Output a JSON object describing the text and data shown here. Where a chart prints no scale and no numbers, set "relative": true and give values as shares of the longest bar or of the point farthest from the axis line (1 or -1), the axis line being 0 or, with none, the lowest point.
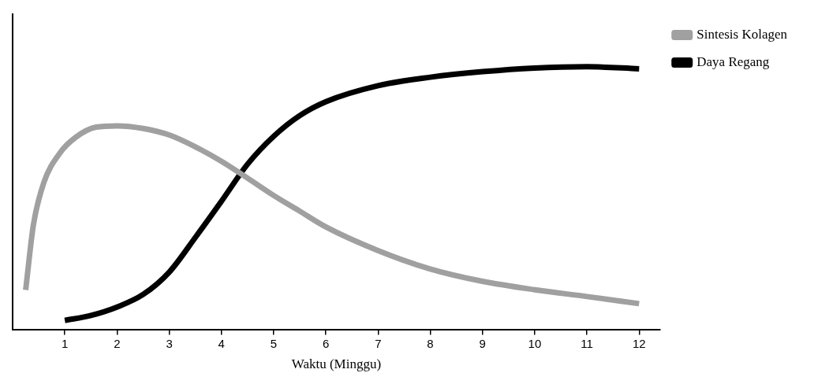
{
  "chart_data": {
    "type": "line",
    "xlabel": "Waktu (Minggu)",
    "relative": true,
    "xlim": [
      0,
      12.4
    ],
    "xticks": [
      1,
      2,
      3,
      4,
      5,
      6,
      7,
      8,
      9,
      10,
      11,
      12
    ],
    "grid": false,
    "legend": "top right",
    "marker": "none",
    "line_style": "solid",
    "series": [
      {
        "name": "Sintesis Kolagen",
        "color": "#a0a0a0",
        "x": [
          0.25,
          0.4,
          0.6,
          0.9,
          1.2,
          1.6,
          2,
          2.5,
          3,
          3.5,
          4,
          4.5,
          5,
          5.5,
          6,
          7,
          8,
          9,
          10,
          11,
          12
        ],
        "values": [
          0.15,
          0.4,
          0.56,
          0.67,
          0.73,
          0.77,
          0.775,
          0.765,
          0.74,
          0.695,
          0.64,
          0.576,
          0.51,
          0.45,
          0.39,
          0.3,
          0.23,
          0.183,
          0.151,
          0.125,
          0.098
        ]
      },
      {
        "name": "Daya Regang",
        "color": "#000000",
        "x": [
          1,
          1.5,
          2,
          2.5,
          3,
          3.5,
          4,
          4.5,
          5,
          5.5,
          6,
          7,
          8,
          9,
          10,
          11,
          12
        ],
        "values": [
          0.034,
          0.053,
          0.085,
          0.133,
          0.218,
          0.35,
          0.488,
          0.629,
          0.735,
          0.814,
          0.867,
          0.928,
          0.96,
          0.981,
          0.995,
          1,
          0.992
        ]
      }
    ]
  }
}
